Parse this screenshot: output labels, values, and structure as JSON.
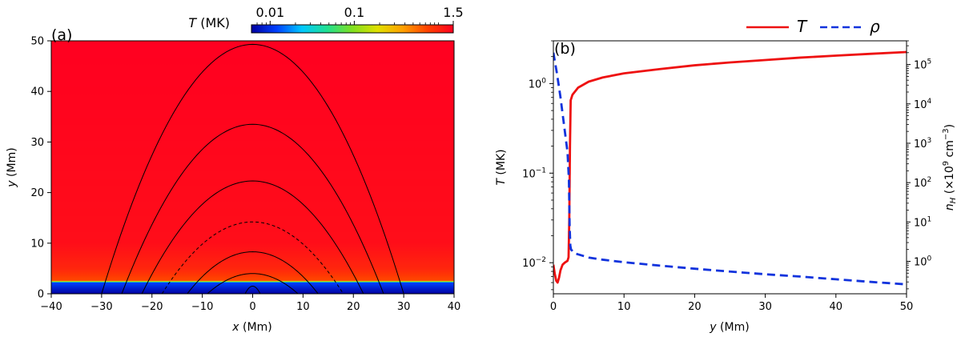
{
  "chart_data": [
    {
      "type": "heatmap",
      "panel_label": "(a)",
      "xlabel_var": "x",
      "xlabel_unit": " (Mm)",
      "ylabel_var": "y",
      "ylabel_unit": " (Mm)",
      "xlim": [
        -40,
        40
      ],
      "ylim": [
        0,
        50
      ],
      "xticks": [
        "−40",
        "−30",
        "−20",
        "−10",
        "0",
        "10",
        "20",
        "30",
        "40"
      ],
      "yticks": [
        "0",
        "10",
        "20",
        "30",
        "40",
        "50"
      ],
      "colorbar": {
        "label_var": "T",
        "label_unit": " (MK)",
        "scale": "log",
        "range": [
          0.006,
          1.5
        ],
        "ticks": [
          "0.01",
          "0.1",
          "1.5"
        ],
        "colors": [
          "#0000a0",
          "#0040ff",
          "#00c8ff",
          "#20e090",
          "#80e020",
          "#e0e000",
          "#ffa000",
          "#ff4000",
          "#ff0020"
        ]
      },
      "temperature_profile_MK": [
        {
          "y": 0,
          "T": 0.006
        },
        {
          "y": 2.2,
          "T": 0.012
        },
        {
          "y": 2.6,
          "T": 0.7
        },
        {
          "y": 5,
          "T": 1.0
        },
        {
          "y": 10,
          "T": 1.3
        },
        {
          "y": 50,
          "T": 1.5
        }
      ],
      "field_lines": [
        {
          "half_width": 1.5,
          "apex": 1.5,
          "style": "solid"
        },
        {
          "half_width": 9,
          "apex": 4,
          "style": "solid"
        },
        {
          "half_width": 13,
          "apex": 8.3,
          "style": "solid"
        },
        {
          "half_width": 18,
          "apex": 14.2,
          "style": "dashed"
        },
        {
          "half_width": 22,
          "apex": 22.3,
          "style": "solid"
        },
        {
          "half_width": 26,
          "apex": 33.5,
          "style": "solid"
        },
        {
          "half_width": 30,
          "apex": 49.3,
          "style": "solid"
        }
      ]
    },
    {
      "type": "line",
      "panel_label": "(b)",
      "xlabel_var": "y",
      "xlabel_unit": " (Mm)",
      "ylabel_left_var": "T",
      "ylabel_left_unit": " (MK)",
      "ylabel_right": "n_H (×10^9 cm^-3)",
      "ylabel_right_parts": {
        "n": "n",
        "sub": "H",
        "pre": " (×10",
        "sup1": "9",
        "mid": " cm",
        "sup2": "−3",
        "post": ")"
      },
      "xlim": [
        0,
        50
      ],
      "ylim_left": [
        0.0045,
        3
      ],
      "ylim_right": [
        0.15,
        400000
      ],
      "xticks": [
        "0",
        "10",
        "20",
        "30",
        "40",
        "50"
      ],
      "yticks_left": [
        {
          "value": 0.01,
          "base": "10",
          "exp": "−2"
        },
        {
          "value": 0.1,
          "base": "10",
          "exp": "−1"
        },
        {
          "value": 1,
          "base": "10",
          "exp": "0"
        }
      ],
      "yticks_right": [
        {
          "value": 1,
          "base": "10",
          "exp": "0"
        },
        {
          "value": 10,
          "base": "10",
          "exp": "1"
        },
        {
          "value": 100,
          "base": "10",
          "exp": "2"
        },
        {
          "value": 1000,
          "base": "10",
          "exp": "3"
        },
        {
          "value": 10000,
          "base": "10",
          "exp": "4"
        },
        {
          "value": 100000,
          "base": "10",
          "exp": "5"
        }
      ],
      "legend": {
        "position": "top-right",
        "entries": [
          {
            "name": "T",
            "color": "#ee1111",
            "style": "solid"
          },
          {
            "name": "ρ",
            "color": "#1133dd",
            "style": "dashed"
          }
        ]
      },
      "series": [
        {
          "name": "T",
          "axis": "left",
          "color": "#ee1111",
          "style": "solid",
          "points": [
            [
              0,
              0.0095
            ],
            [
              0.2,
              0.0075
            ],
            [
              0.4,
              0.0063
            ],
            [
              0.6,
              0.006
            ],
            [
              0.8,
              0.0068
            ],
            [
              1.0,
              0.0082
            ],
            [
              1.3,
              0.0095
            ],
            [
              1.6,
              0.01
            ],
            [
              2.0,
              0.0105
            ],
            [
              2.15,
              0.0115
            ],
            [
              2.25,
              0.03
            ],
            [
              2.35,
              0.2
            ],
            [
              2.45,
              0.65
            ],
            [
              2.7,
              0.75
            ],
            [
              3.5,
              0.9
            ],
            [
              5,
              1.05
            ],
            [
              7,
              1.17
            ],
            [
              10,
              1.3
            ],
            [
              15,
              1.45
            ],
            [
              20,
              1.6
            ],
            [
              25,
              1.72
            ],
            [
              30,
              1.83
            ],
            [
              35,
              1.95
            ],
            [
              40,
              2.05
            ],
            [
              45,
              2.15
            ],
            [
              50,
              2.25
            ]
          ]
        },
        {
          "name": "ρ",
          "axis": "right",
          "color": "#1133dd",
          "style": "dashed",
          "points": [
            [
              0,
              200000
            ],
            [
              0.5,
              60000
            ],
            [
              1.0,
              15000
            ],
            [
              1.5,
              3000
            ],
            [
              2.0,
              600
            ],
            [
              2.2,
              120
            ],
            [
              2.3,
              8
            ],
            [
              2.4,
              2.5
            ],
            [
              2.5,
              2.0
            ],
            [
              3,
              1.6
            ],
            [
              5,
              1.25
            ],
            [
              7,
              1.1
            ],
            [
              10,
              0.95
            ],
            [
              15,
              0.78
            ],
            [
              20,
              0.65
            ],
            [
              25,
              0.55
            ],
            [
              30,
              0.47
            ],
            [
              35,
              0.41
            ],
            [
              40,
              0.35
            ],
            [
              45,
              0.3
            ],
            [
              50,
              0.26
            ]
          ]
        }
      ]
    }
  ]
}
